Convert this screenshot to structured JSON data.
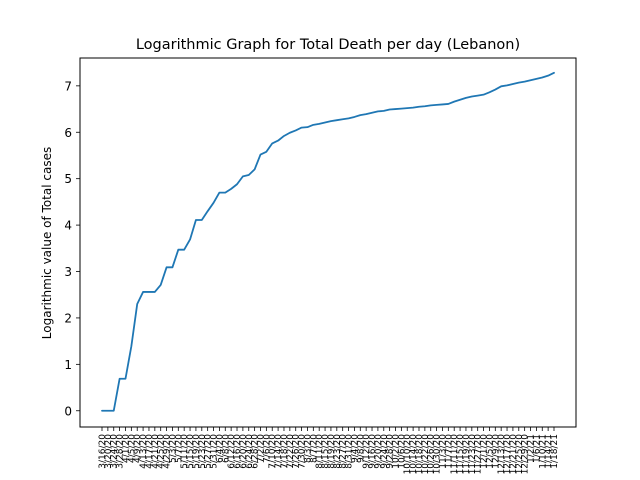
{
  "chart_data": {
    "type": "line",
    "title": "Logarithmic Graph for Total Death per day (Lebanon)",
    "xlabel": "",
    "ylabel": "Logarithmic value of Total cases",
    "ylim": [
      -0.35,
      7.6
    ],
    "yticks": [
      0,
      1,
      2,
      3,
      4,
      5,
      6,
      7
    ],
    "grid": false,
    "line_color": "#1f77b4",
    "x_tick_labels": [
      "3/16/20",
      "3/20/20",
      "3/24/20",
      "3/28/20",
      "4/1/20",
      "4/5/20",
      "4/9/20",
      "4/13/20",
      "4/17/20",
      "4/21/20",
      "4/25/20",
      "4/29/20",
      "5/3/20",
      "5/7/20",
      "5/11/20",
      "5/15/20",
      "5/19/20",
      "5/23/20",
      "5/27/20",
      "5/31/20",
      "6/4/20",
      "6/8/20",
      "6/12/20",
      "6/16/20",
      "6/20/20",
      "6/24/20",
      "6/28/20",
      "7/2/20",
      "7/6/20",
      "7/10/20",
      "7/14/20",
      "7/18/20",
      "7/22/20",
      "7/26/20",
      "7/30/20",
      "8/3/20",
      "8/7/20",
      "8/11/20",
      "8/15/20",
      "8/19/20",
      "8/23/20",
      "8/27/20",
      "8/31/20",
      "9/4/20",
      "9/8/20",
      "9/12/20",
      "9/16/20",
      "9/20/20",
      "9/24/20",
      "9/28/20",
      "10/2/20",
      "10/6/20",
      "10/10/20",
      "10/14/20",
      "10/18/20",
      "10/22/20",
      "10/26/20",
      "10/30/20",
      "11/3/20",
      "11/7/20",
      "11/11/20",
      "11/15/20",
      "11/19/20",
      "11/23/20",
      "11/27/20",
      "12/1/20",
      "12/5/20",
      "12/9/20",
      "12/13/20",
      "12/17/20",
      "12/21/20",
      "12/25/20",
      "12/29/20",
      "1/2/21",
      "1/6/21",
      "1/10/21",
      "1/14/21",
      "1/18/21"
    ],
    "x": [
      "3/16/20",
      "3/20/20",
      "3/24/20",
      "3/28/20",
      "4/1/20",
      "4/5/20",
      "4/9/20",
      "4/13/20",
      "4/17/20",
      "4/21/20",
      "4/25/20",
      "4/29/20",
      "5/3/20",
      "5/7/20",
      "5/11/20",
      "5/15/20",
      "5/19/20",
      "5/23/20",
      "5/27/20",
      "5/31/20",
      "6/4/20",
      "6/8/20",
      "6/12/20",
      "6/16/20",
      "6/20/20",
      "6/24/20",
      "6/28/20",
      "7/2/20",
      "7/6/20",
      "7/10/20",
      "7/14/20",
      "7/18/20",
      "7/22/20",
      "7/26/20",
      "7/30/20",
      "8/3/20",
      "8/7/20",
      "8/11/20",
      "8/15/20",
      "8/19/20",
      "8/23/20",
      "8/27/20",
      "8/31/20",
      "9/4/20",
      "9/8/20",
      "9/12/20",
      "9/16/20",
      "9/20/20",
      "9/24/20",
      "9/28/20",
      "10/2/20",
      "10/6/20",
      "10/10/20",
      "10/14/20",
      "10/18/20",
      "10/22/20",
      "10/26/20",
      "10/30/20",
      "11/3/20",
      "11/7/20",
      "11/11/20",
      "11/15/20",
      "11/19/20",
      "11/23/20",
      "11/27/20",
      "12/1/20",
      "12/5/20",
      "12/9/20",
      "12/13/20",
      "12/17/20",
      "12/21/20",
      "12/25/20",
      "12/29/20",
      "1/2/21",
      "1/6/21",
      "1/10/21",
      "1/14/21",
      "1/18/21"
    ],
    "series": [
      {
        "values": [
          0,
          0,
          0,
          0.69,
          0.69,
          1.39,
          2.3,
          2.56,
          2.56,
          2.56,
          2.71,
          3.09,
          3.09,
          3.47,
          3.47,
          3.69,
          4.11,
          4.11,
          4.3,
          4.48,
          4.7,
          4.7,
          4.78,
          4.88,
          5.05,
          5.08,
          5.2,
          5.52,
          5.58,
          5.76,
          5.82,
          5.92,
          5.99,
          6.04,
          6.1,
          6.11,
          6.16,
          6.18,
          6.21,
          6.24,
          6.26,
          6.28,
          6.3,
          6.33,
          6.37,
          6.39,
          6.42,
          6.45,
          6.46,
          6.49,
          6.5,
          6.51,
          6.52,
          6.53,
          6.55,
          6.56,
          6.58,
          6.59,
          6.6,
          6.61,
          6.66,
          6.7,
          6.74,
          6.77,
          6.79,
          6.81,
          6.86,
          6.92,
          6.99,
          7.01,
          7.04,
          7.07,
          7.09,
          7.12,
          7.15,
          7.18,
          7.22,
          7.28
        ]
      }
    ]
  }
}
